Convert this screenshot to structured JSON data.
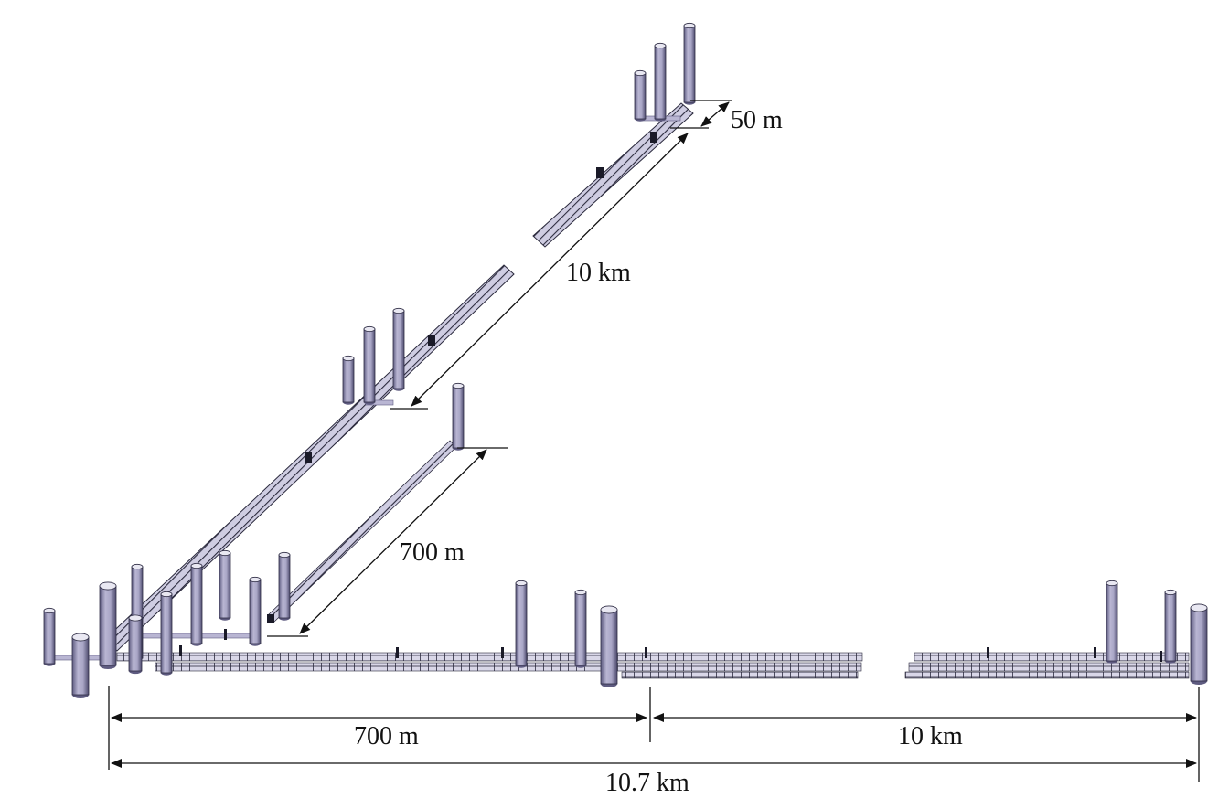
{
  "colors": {
    "background": "#ffffff",
    "shaft_body": "#a9a6c6",
    "shaft_shade": "#5e5b80",
    "shaft_top": "#e9e8f2",
    "tunnel_hatch": "#2b2a3d",
    "tunnel_fill": "#cfcde2",
    "dimension_line": "#111111"
  },
  "dimensions": {
    "top_offset": "50 m",
    "main_tunnel_diagonal": "10 km",
    "branch_diagonal": "700 m",
    "bottom_left_segment": "700 m",
    "bottom_right_segment": "10 km",
    "bottom_total": "10.7 km"
  },
  "components": {
    "shaft_icon": "vertical-cylinder-shaft",
    "tunnel_icon": "hatched-tunnel-tube",
    "arrow_icon": "dimension-arrow"
  }
}
